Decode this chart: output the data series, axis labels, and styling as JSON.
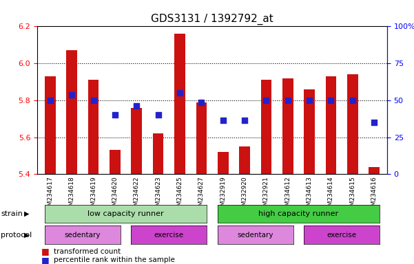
{
  "title": "GDS3131 / 1392792_at",
  "samples": [
    "GSM234617",
    "GSM234618",
    "GSM234619",
    "GSM234620",
    "GSM234622",
    "GSM234623",
    "GSM234625",
    "GSM234627",
    "GSM232919",
    "GSM232920",
    "GSM232921",
    "GSM234612",
    "GSM234613",
    "GSM234614",
    "GSM234615",
    "GSM234616"
  ],
  "bar_values_full": [
    5.93,
    6.07,
    5.91,
    5.53,
    5.76,
    5.62,
    6.16,
    5.79,
    5.52,
    5.55,
    5.91,
    5.92,
    5.86,
    5.93,
    5.94,
    5.44
  ],
  "percentile_values": [
    5.8,
    5.83,
    5.8,
    5.72,
    5.77,
    5.72,
    5.84,
    5.79,
    5.69,
    5.69,
    5.8,
    5.8,
    5.8,
    5.8,
    5.8,
    5.68
  ],
  "ymin": 5.4,
  "ymax": 6.2,
  "yticks": [
    5.4,
    5.6,
    5.8,
    6.0,
    6.2
  ],
  "right_yticks": [
    0,
    25,
    50,
    75,
    100
  ],
  "bar_color": "#cc1111",
  "dot_color": "#2222cc",
  "strain_lcr": "low capacity runner",
  "strain_hcr": "high capacity runner",
  "lcr_color": "#aaeea a",
  "hcr_color": "#55dd55",
  "sed_color": "#dd88dd",
  "ex_color": "#cc44cc",
  "protocol_sed": "sedentary",
  "protocol_ex": "exercise",
  "legend_bar_label": "transformed count",
  "legend_dot_label": "percentile rank within the sample",
  "background_color": "#ffffff"
}
